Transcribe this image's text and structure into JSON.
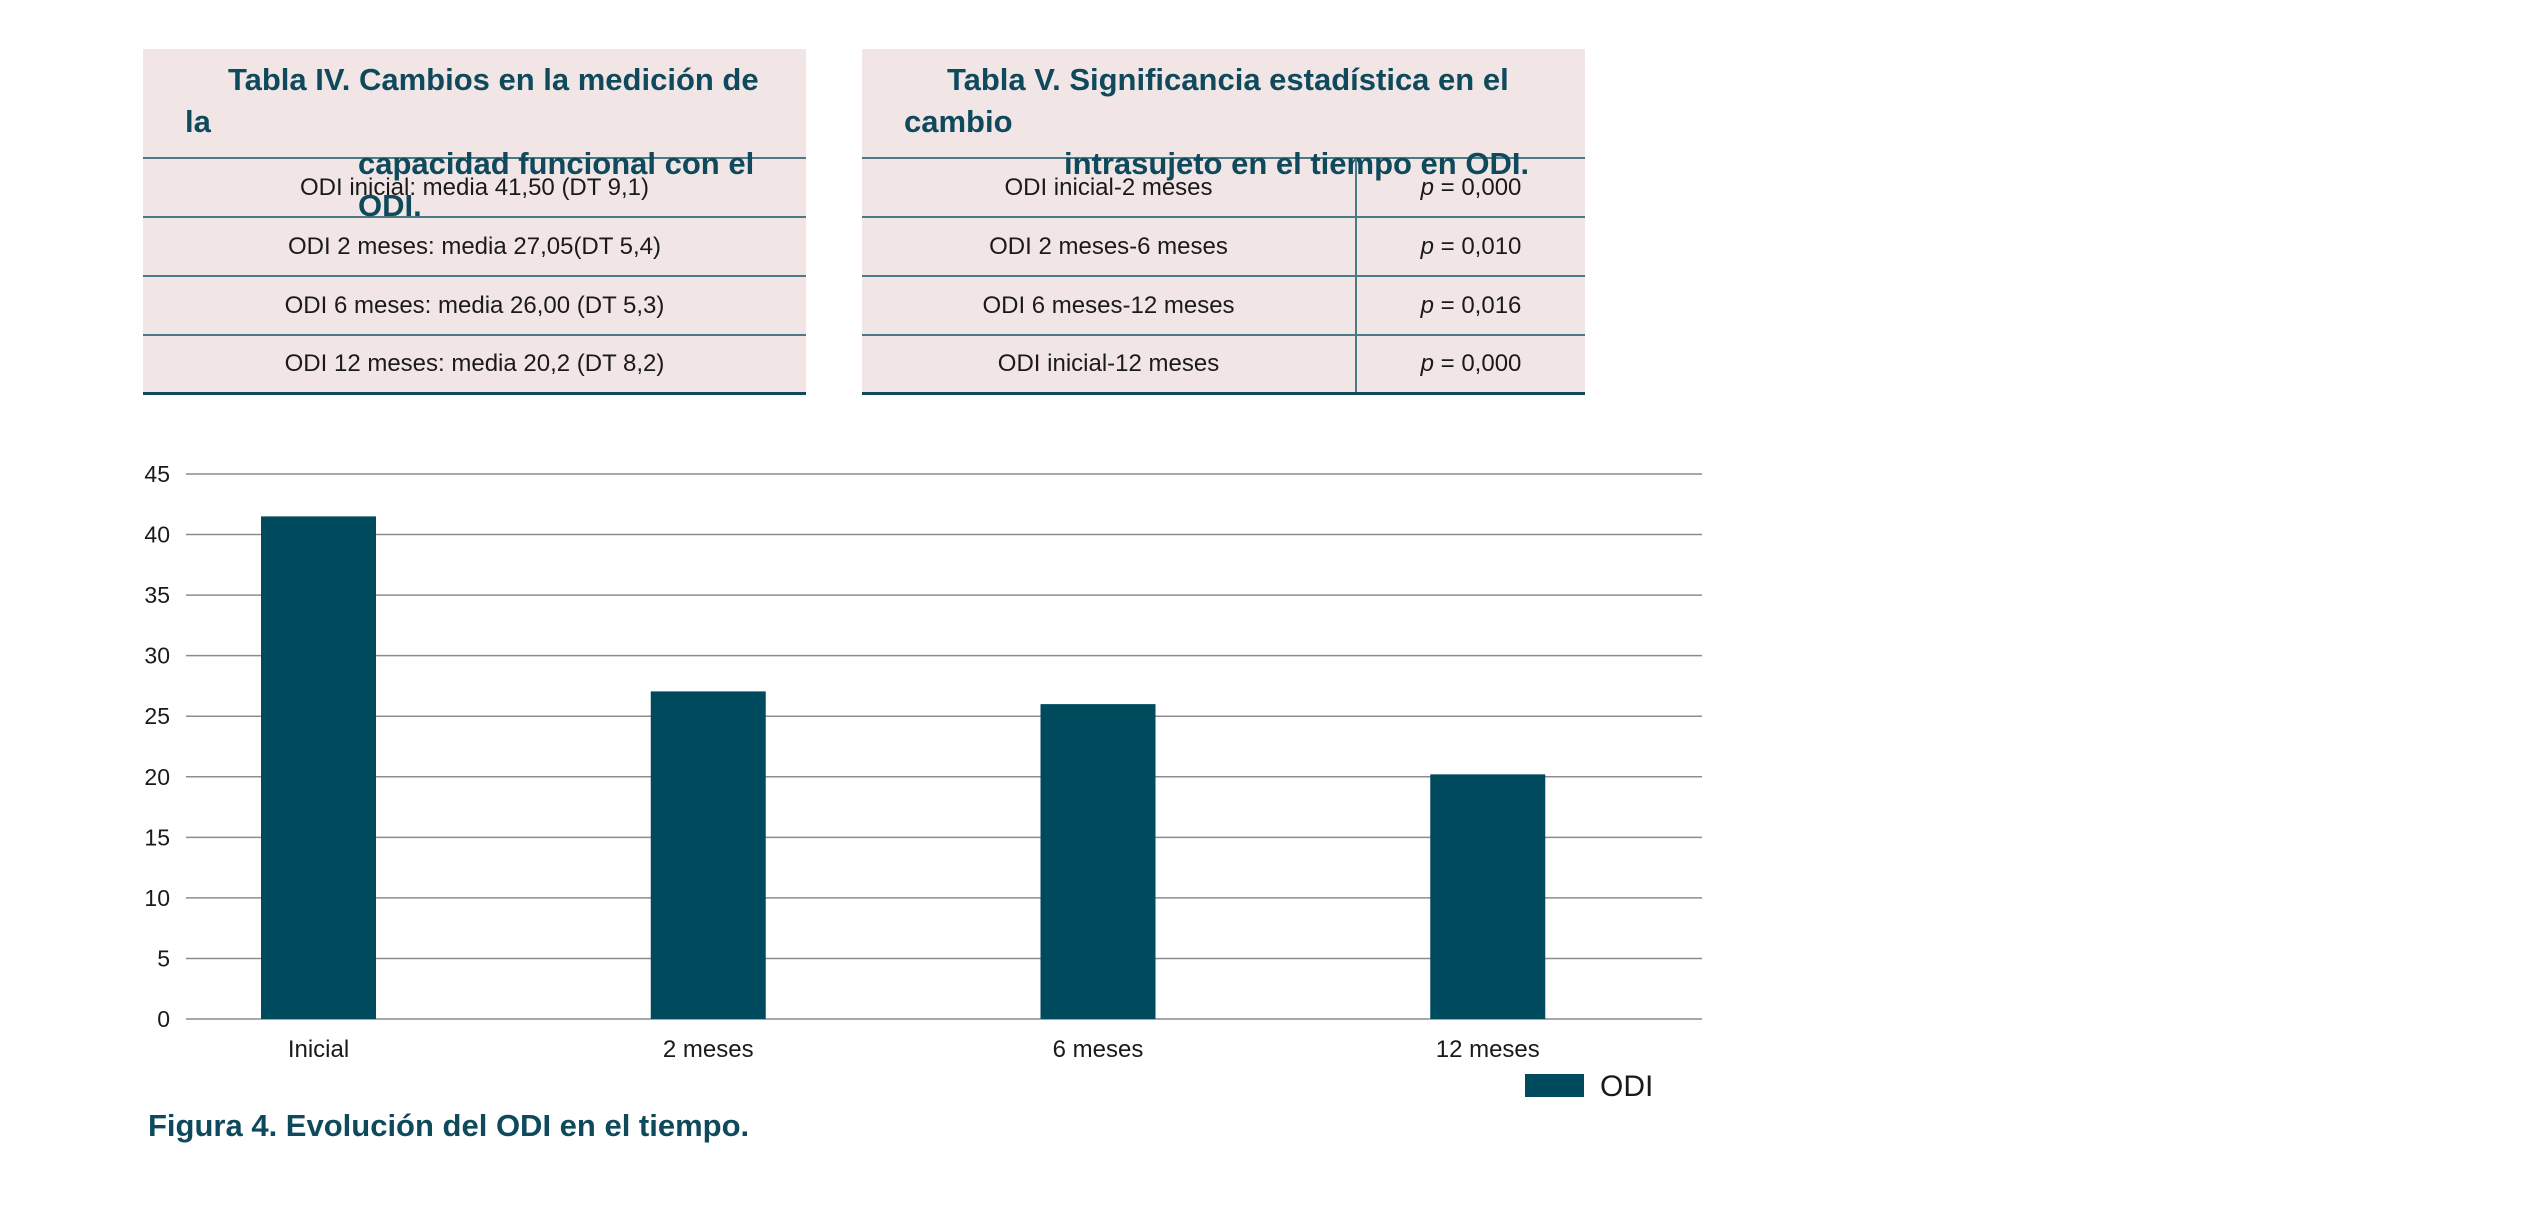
{
  "tabla4": {
    "title_line1": "Tabla IV. Cambios en la medición de la",
    "title_line2": "capacidad funcional con el ODI.",
    "rows": [
      "ODI inicial: media 41,50 (DT 9,1)",
      "ODI 2 meses: media 27,05(DT 5,4)",
      "ODI 6 meses: media 26,00 (DT 5,3)",
      "ODI 12 meses: media 20,2 (DT 8,2)"
    ]
  },
  "tabla5": {
    "title_line1": "Tabla V. Significancia estadística en el cambio",
    "title_line2": "intrasujeto en el tiempo en ODI.",
    "p_symbol": "p",
    "rows": [
      {
        "label": "ODI inicial-2 meses",
        "value": "= 0,000"
      },
      {
        "label": "ODI 2 meses-6 meses",
        "value": "= 0,010"
      },
      {
        "label": "ODI 6 meses-12 meses",
        "value": "= 0,016"
      },
      {
        "label": "ODI inicial-12 meses",
        "value": "= 0,000"
      }
    ]
  },
  "figure_caption": "Figura 4. Evolución del ODI en el tiempo.",
  "colors": {
    "bar": "#004a5e",
    "title": "#0e4a5c",
    "table_bg": "#f2e5e6"
  },
  "chart_data": {
    "type": "bar",
    "categories": [
      "Inicial",
      "2 meses",
      "6 meses",
      "12 meses"
    ],
    "series": [
      {
        "name": "ODI",
        "values": [
          41.5,
          27.05,
          26.0,
          20.2
        ]
      }
    ],
    "ylim": [
      0,
      45
    ],
    "yticks": [
      "0",
      "5",
      "10",
      "15",
      "20",
      "25",
      "30",
      "35",
      "40",
      "45"
    ],
    "grid": true,
    "legend_position": "bottom-right",
    "title": "",
    "xlabel": "",
    "ylabel": ""
  }
}
